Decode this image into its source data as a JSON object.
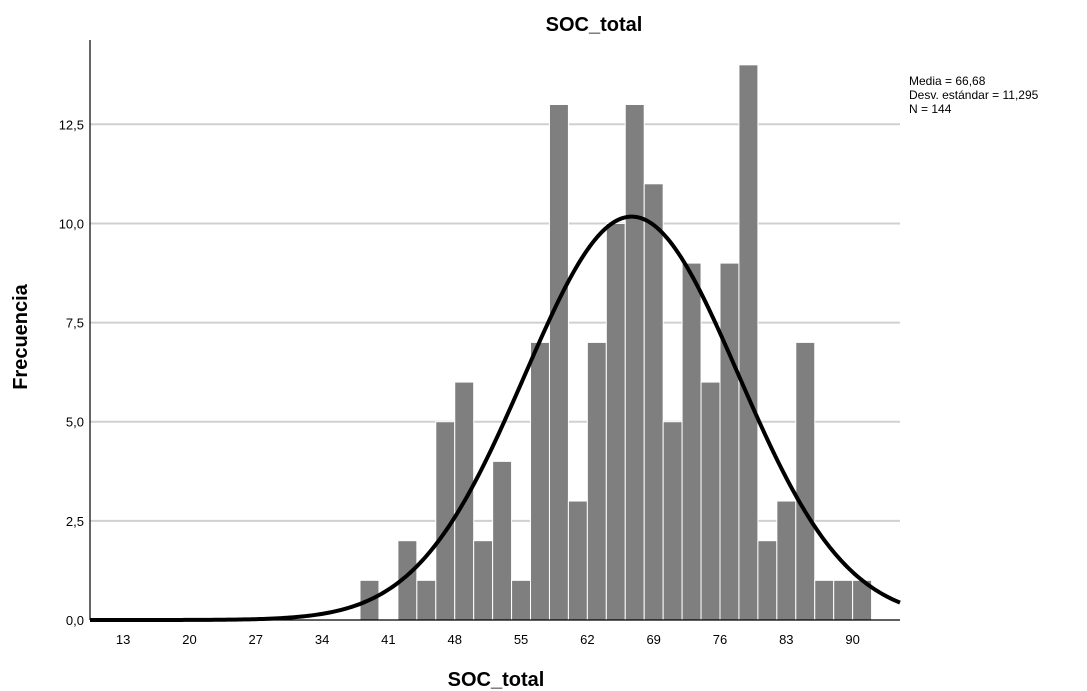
{
  "chart_data": {
    "type": "bar",
    "title": "SOC_total",
    "xlabel": "SOC_total",
    "ylabel": "Frecuencia",
    "xlim": [
      9.5,
      95
    ],
    "ylim": [
      0,
      14.5
    ],
    "xticks": [
      13,
      20,
      27,
      34,
      41,
      48,
      55,
      62,
      69,
      76,
      83,
      90
    ],
    "xtick_labels": [
      "13",
      "20",
      "27",
      "34",
      "41",
      "48",
      "55",
      "62",
      "69",
      "76",
      "83",
      "90"
    ],
    "yticks": [
      0,
      2.5,
      5,
      7.5,
      10,
      12.5
    ],
    "ytick_labels": [
      "0,0",
      "2,5",
      "5,0",
      "7,5",
      "10,0",
      "12,5"
    ],
    "grid": true,
    "bin_width": 2,
    "bin_centers": [
      39,
      41,
      43,
      45,
      47,
      49,
      51,
      53,
      55,
      57,
      59,
      61,
      63,
      65,
      67,
      69,
      71,
      73,
      75,
      77,
      79,
      81,
      83,
      85,
      87,
      89,
      91
    ],
    "values": [
      1,
      0,
      2,
      1,
      5,
      6,
      2,
      4,
      1,
      7,
      13,
      3,
      7,
      10,
      13,
      11,
      5,
      9,
      6,
      9,
      14,
      2,
      3,
      7,
      1,
      1,
      1
    ],
    "normal_curve": {
      "mean": 66.68,
      "sd": 11.295,
      "n": 144
    },
    "stats_lines": [
      "Media = 66,68",
      "Desv. estándar = 11,295",
      "N = 144"
    ]
  }
}
